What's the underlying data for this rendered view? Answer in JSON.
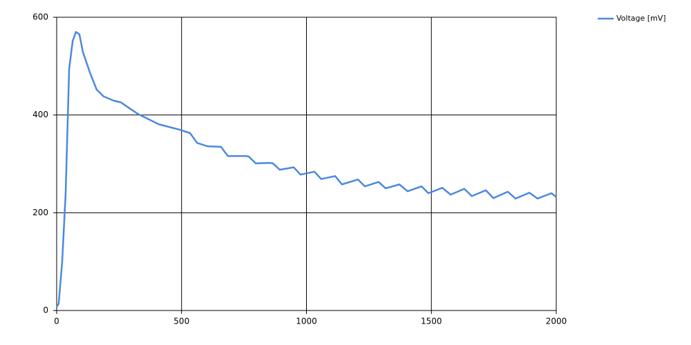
{
  "chart_data": {
    "type": "line",
    "x": [
      0,
      8,
      22,
      36,
      50,
      64,
      77,
      91,
      105,
      133,
      160,
      188,
      230,
      257,
      285,
      326,
      409,
      492,
      534,
      548,
      562,
      603,
      658,
      672,
      686,
      755,
      769,
      797,
      852,
      866,
      893,
      949,
      976,
      1032,
      1059,
      1115,
      1142,
      1206,
      1234,
      1289,
      1317,
      1372,
      1405,
      1461,
      1488,
      1544,
      1577,
      1632,
      1662,
      1718,
      1748,
      1806,
      1837,
      1892,
      1925,
      1981,
      2000
    ],
    "series": [
      {
        "name": "Voltage [mV]",
        "color": "#4a88e0",
        "values": [
          7,
          14,
          99,
          240,
          494,
          551,
          570,
          565,
          529,
          487,
          452,
          438,
          429,
          426,
          416,
          402,
          381,
          370,
          363,
          353,
          343,
          336,
          335,
          325,
          316,
          316,
          315,
          301,
          302,
          301,
          288,
          293,
          278,
          284,
          269,
          275,
          258,
          268,
          254,
          263,
          250,
          258,
          244,
          254,
          240,
          251,
          237,
          249,
          234,
          246,
          230,
          243,
          229,
          241,
          229,
          240,
          232
        ]
      }
    ],
    "xlim": [
      0,
      2000
    ],
    "xticks": [
      0,
      500,
      1000,
      1500,
      2000
    ],
    "ylim": [
      0,
      600
    ],
    "yticks": [
      0,
      200,
      400,
      600
    ],
    "grid": true,
    "legend": "top-right"
  }
}
